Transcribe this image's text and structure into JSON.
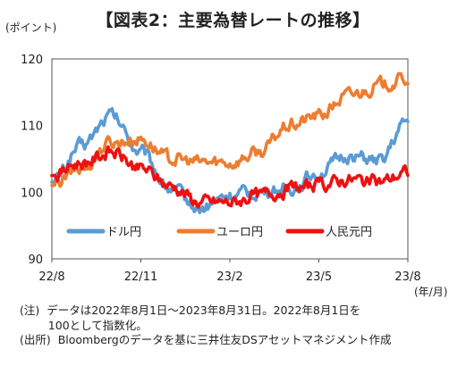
{
  "chart_data": {
    "type": "line",
    "title": "【図表2：主要為替レートの推移】",
    "y_unit": "(ポイント)",
    "x_unit": "(年/月)",
    "ylim": [
      90,
      120
    ],
    "y_ticks": [
      "90",
      "100",
      "110",
      "120"
    ],
    "x_ticks": [
      "22/8",
      "22/11",
      "23/2",
      "23/5",
      "23/8"
    ],
    "grid": false,
    "legend": "inside-bottom",
    "x": [
      "22/8",
      "22/9",
      "22/10",
      "22/11",
      "22/12",
      "23/1",
      "23/2",
      "23/3",
      "23/4",
      "23/5",
      "23/6",
      "23/7",
      "23/8"
    ],
    "series": [
      {
        "name": "ドル円",
        "color": "#5b9bd5",
        "values": [
          101.5,
          107.0,
          111.5,
          106.0,
          100.5,
          97.5,
          99.5,
          100.0,
          100.5,
          103.0,
          105.5,
          104.5,
          110.5
        ]
      },
      {
        "name": "ユーロ円",
        "color": "#ed7d31",
        "values": [
          101.0,
          103.5,
          107.5,
          108.0,
          105.0,
          104.5,
          104.5,
          106.0,
          110.0,
          111.5,
          114.5,
          116.0,
          117.0
        ]
      },
      {
        "name": "人民元円",
        "color": "#ee1111",
        "values": [
          102.5,
          104.5,
          106.0,
          103.5,
          101.0,
          98.5,
          98.5,
          99.5,
          100.5,
          101.0,
          102.0,
          101.5,
          103.0
        ]
      }
    ]
  },
  "notes": [
    "(注)  データは2022年8月1日～2023年8月31日。2022年8月1日を",
    "        100として指数化。",
    "(出所)  Bloombergのデータを基に三井住友DSアセットマネジメント作成"
  ]
}
